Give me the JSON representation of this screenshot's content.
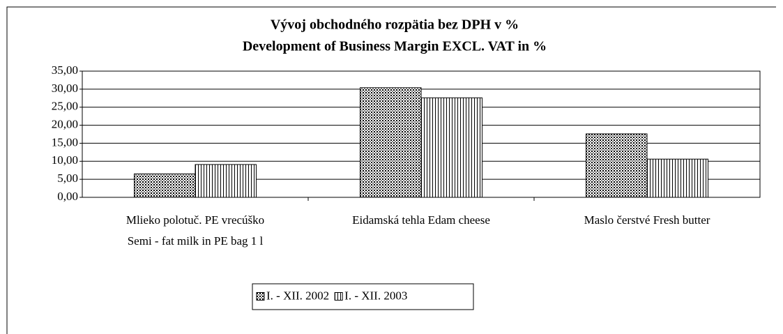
{
  "chart_data": {
    "type": "bar",
    "title": "Vývoj obchodného rozpätia bez DPH v %",
    "subtitle": "Development of Business Margin EXCL. VAT in %",
    "categories": [
      [
        "Mlieko polotuč. PE vrecúško",
        "Semi - fat milk in PE bag 1 l"
      ],
      [
        "Eidamská tehla Edam cheese"
      ],
      [
        "Maslo čerstvé Fresh butter"
      ]
    ],
    "series": [
      {
        "name": "I. - XII. 2002",
        "color": "#000000",
        "pattern": "checker",
        "values": [
          6.5,
          30.4,
          17.6
        ]
      },
      {
        "name": "I. - XII. 2003",
        "color": "#000000",
        "pattern": "vertical",
        "values": [
          9.1,
          27.6,
          10.6
        ]
      }
    ],
    "ylim": [
      0,
      35
    ],
    "yticks": [
      {
        "value": 0,
        "label": "0,00"
      },
      {
        "value": 5,
        "label": "5,00"
      },
      {
        "value": 10,
        "label": "10,00"
      },
      {
        "value": 15,
        "label": "15,00"
      },
      {
        "value": 20,
        "label": "20,00"
      },
      {
        "value": 25,
        "label": "25,00"
      },
      {
        "value": 30,
        "label": "30,00"
      },
      {
        "value": 35,
        "label": "35,00"
      }
    ],
    "grid": true,
    "legend": "bottom"
  }
}
